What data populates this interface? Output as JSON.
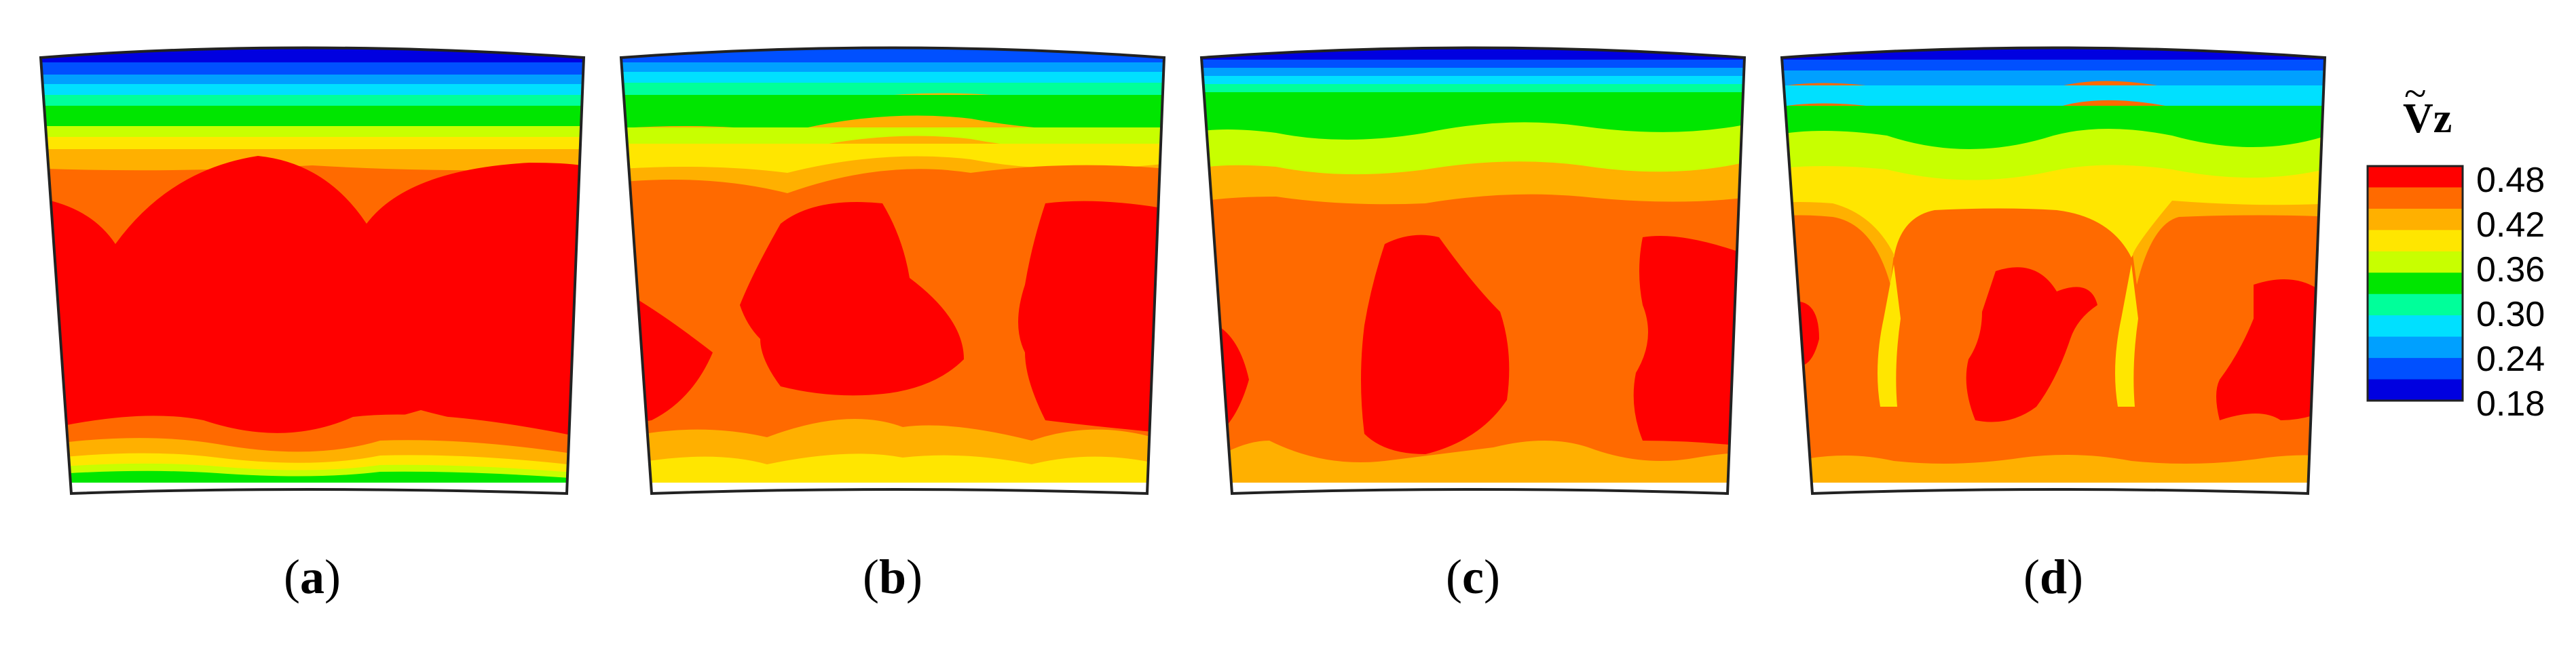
{
  "panels": [
    {
      "id": "a",
      "label": "a"
    },
    {
      "id": "b",
      "label": "b"
    },
    {
      "id": "c",
      "label": "c"
    },
    {
      "id": "d",
      "label": "d"
    }
  ],
  "legend": {
    "title": "Vz",
    "tilde": "~",
    "ticks": [
      "0.48",
      "0.42",
      "0.36",
      "0.30",
      "0.24",
      "0.18"
    ],
    "levels": [
      "#ff0000",
      "#ff6a00",
      "#ffb000",
      "#ffe600",
      "#c8ff00",
      "#00e600",
      "#00ff9a",
      "#00e0ff",
      "#00a0ff",
      "#0050ff",
      "#0000e0"
    ]
  },
  "colors": {
    "red": "#ff0000",
    "orange_red": "#ff6a00",
    "orange": "#ffb000",
    "yellow": "#ffe600",
    "yellow_green": "#c8ff00",
    "green": "#00e600",
    "mint": "#00ff9a",
    "cyan": "#00e0ff",
    "sky": "#00a0ff",
    "blue": "#0050ff",
    "deep_blue": "#0000e0"
  }
}
